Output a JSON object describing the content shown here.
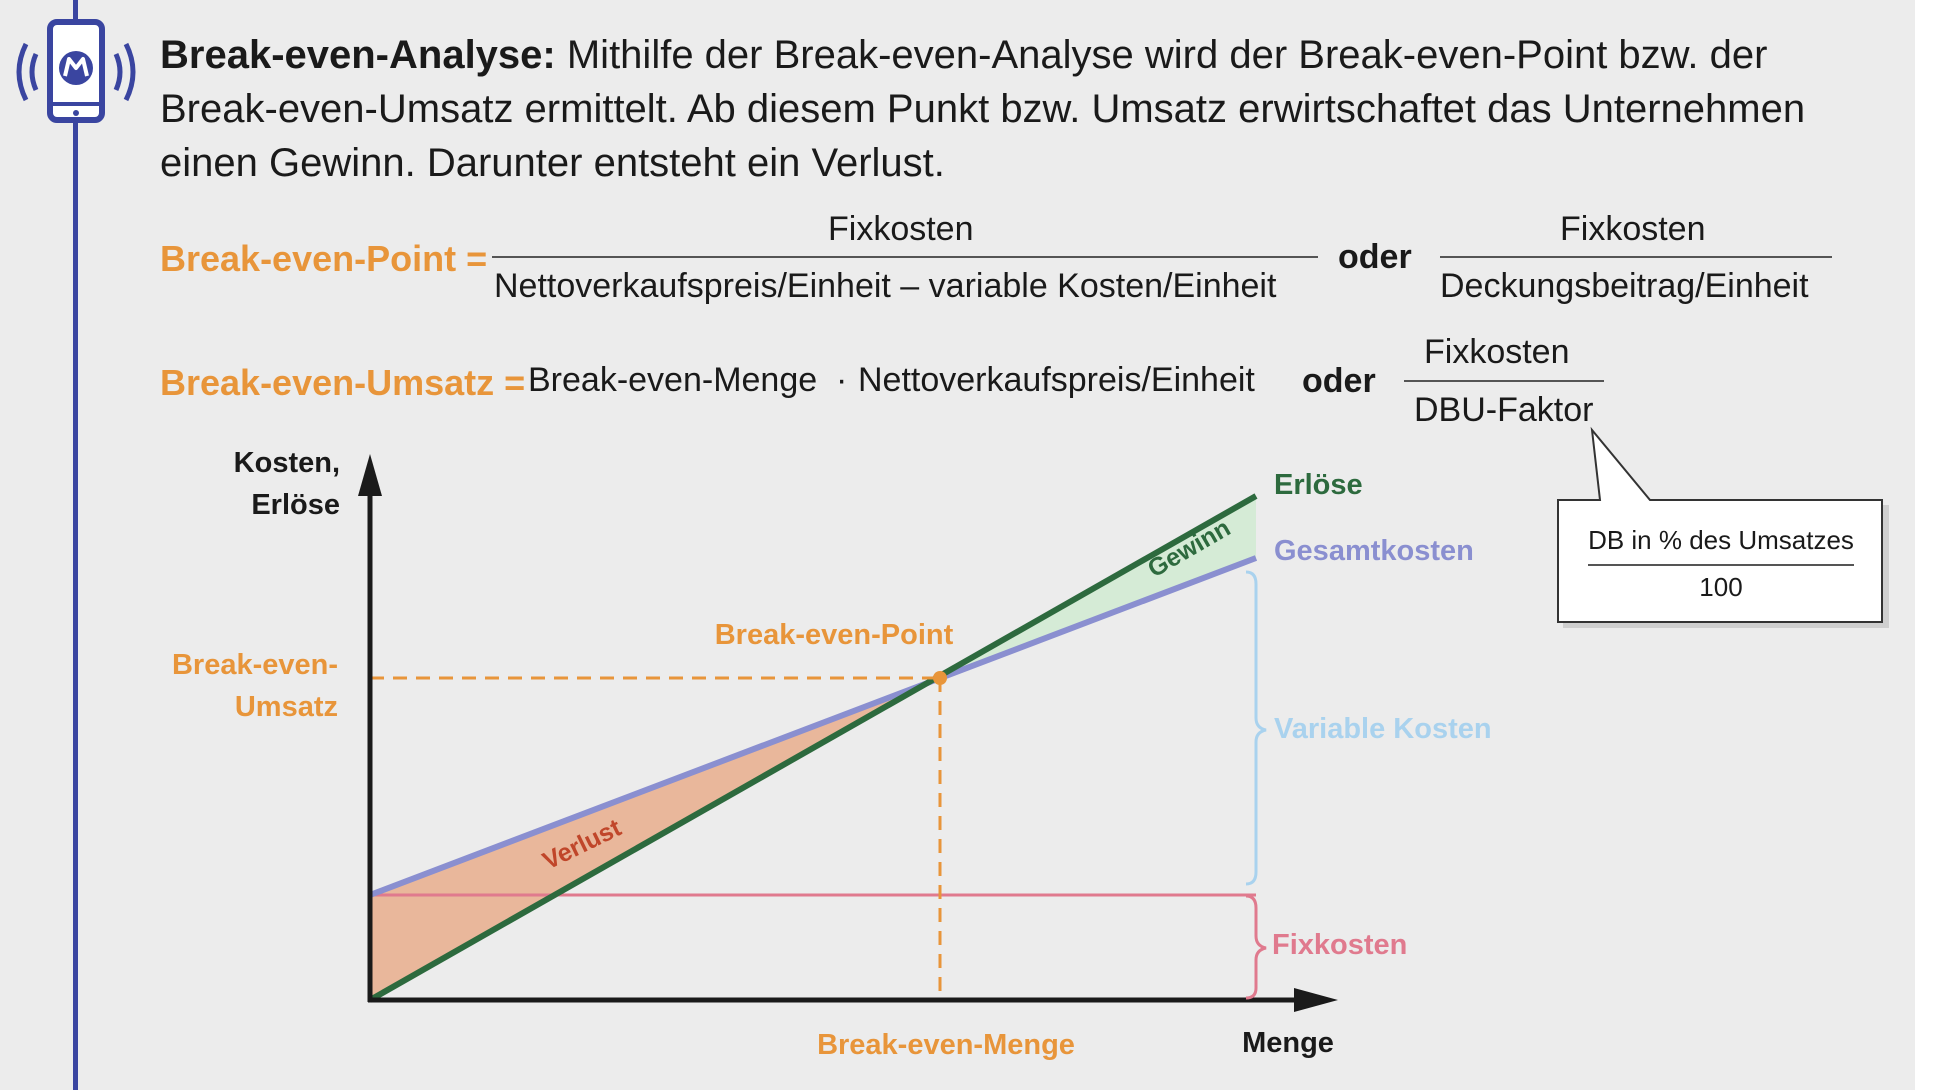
{
  "intro": {
    "term": "Break-even-Analyse:",
    "text": " Mithilfe der Break-even-Analyse wird der Break-even-Point bzw. der Break-even-Umsatz ermittelt. Ab diesem Punkt bzw. Umsatz erwirtschaftet das Unternehmen einen Gewinn. Darunter entsteht ein Verlust."
  },
  "formula1": {
    "label": "Break-even-Point =",
    "num1": "Fixkosten",
    "den1": "Nettoverkaufspreis/Einheit – variable Kosten/Einheit",
    "oder": "oder",
    "num2": "Fixkosten",
    "den2": "Deckungsbeitrag/Einheit"
  },
  "formula2": {
    "label": "Break-even-Umsatz =",
    "term1": "Break-even-Menge",
    "dot": "·",
    "term2": "Nettoverkaufspreis/Einheit",
    "oder": "oder",
    "num": "Fixkosten",
    "den": "DBU-Faktor"
  },
  "callout": {
    "num": "DB in % des Umsatzes",
    "den": "100"
  },
  "diagram": {
    "y_axis_label_1": "Kosten,",
    "y_axis_label_2": "Erlöse",
    "x_axis_label": "Menge",
    "bep_label": "Break-even-Point",
    "beu_label_1": "Break-even-",
    "beu_label_2": "Umsatz",
    "bem_label": "Break-even-Menge",
    "erloese": "Erlöse",
    "gesamtkosten": "Gesamtkosten",
    "variable_kosten": "Variable Kosten",
    "fixkosten": "Fixkosten",
    "gewinn": "Gewinn",
    "verlust": "Verlust"
  },
  "colors": {
    "orange": "#e8953a",
    "green": "#2d6a3e",
    "purple": "#8a8fd0",
    "lightblue": "#a9d2ee",
    "pink": "#e07a8e",
    "loss_fill": "#e9b79b",
    "profit_fill": "#d5ebd6",
    "accent_bar": "#3a45a0"
  },
  "icon": "broadcast-phone-icon"
}
